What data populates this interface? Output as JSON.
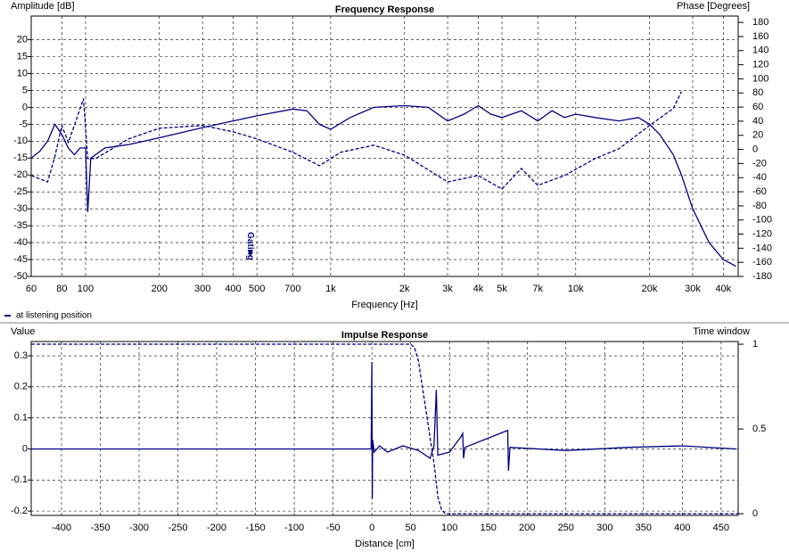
{
  "chart_data": [
    {
      "type": "line",
      "title": "Frequency Response",
      "ylabel": "Amplitude [dB]",
      "y2label": "Phase [Degrees]",
      "xlabel": "Frequency [Hz]",
      "xlog": true,
      "grid": true,
      "legend": "bottom-left",
      "xlim": [
        60,
        46000
      ],
      "ylim": [
        -50,
        27
      ],
      "y2lim": [
        -180,
        189
      ],
      "xticks": [
        60,
        80,
        100,
        200,
        300,
        400,
        500,
        700,
        {
          "value": 1000,
          "label": "1k"
        },
        {
          "value": 2000,
          "label": "2k"
        },
        {
          "value": 3000,
          "label": "3k"
        },
        {
          "value": 4000,
          "label": "4k"
        },
        {
          "value": 5000,
          "label": "5k"
        },
        {
          "value": 7000,
          "label": "7k"
        },
        {
          "value": 10000,
          "label": "10k"
        },
        {
          "value": 20000,
          "label": "20k"
        },
        {
          "value": 30000,
          "label": "30k"
        },
        {
          "value": 40000,
          "label": "40k"
        }
      ],
      "yticks": [
        20,
        15,
        10,
        5,
        0,
        -5,
        -10,
        -15,
        -20,
        -25,
        -30,
        -35,
        -40,
        -45,
        -50
      ],
      "y2ticks": [
        180,
        160,
        140,
        120,
        100,
        80,
        60,
        40,
        20,
        0,
        -20,
        -40,
        -60,
        -80,
        -100,
        -120,
        -140,
        -160,
        -180
      ],
      "annotations": [
        {
          "text": "Gating",
          "x": 470
        }
      ],
      "series": [
        {
          "name": "at listening position",
          "color": "#000080",
          "style": "solid",
          "x": [
            60,
            65,
            70,
            75,
            80,
            85,
            90,
            95,
            100,
            102,
            105,
            120,
            150,
            200,
            300,
            400,
            500,
            700,
            800,
            900,
            1000,
            1200,
            1500,
            2000,
            2500,
            3000,
            3500,
            4000,
            4500,
            5000,
            6000,
            7000,
            8000,
            9000,
            10000,
            12000,
            15000,
            18000,
            20000,
            22000,
            25000,
            27000,
            30000,
            35000,
            40000,
            45000
          ],
          "values": [
            -15,
            -13,
            -10,
            -5,
            -8,
            -12,
            -14,
            -12,
            -12,
            -31,
            -15,
            -12,
            -11,
            -9,
            -6,
            -4,
            -2.5,
            -0.5,
            -1,
            -5,
            -6.5,
            -3,
            0,
            0.5,
            0,
            -4,
            -2,
            0.5,
            -2,
            -3,
            -1,
            -4,
            -1,
            -3,
            -2,
            -3,
            -4,
            -3,
            -5,
            -8,
            -14,
            -20,
            -30,
            -40,
            -45,
            -47
          ]
        },
        {
          "color": "#000080",
          "style": "dashed",
          "axis": "y2",
          "x": [
            60,
            70,
            75,
            80,
            85,
            90,
            98,
            102,
            110,
            150,
            200,
            300,
            400,
            500,
            700,
            900,
            1100,
            1500,
            2000,
            3000,
            4000,
            5000,
            6000,
            7000,
            9000,
            12000,
            15000,
            20000,
            25000,
            27000
          ],
          "values": [
            -37,
            -46,
            -10,
            34,
            10,
            34,
            72,
            -13,
            -13,
            15,
            30,
            34,
            25,
            15,
            -4,
            -23,
            -4,
            6,
            -8,
            -46,
            -37,
            -56,
            -27,
            -51,
            -37,
            -13,
            1,
            34,
            58,
            82
          ]
        }
      ]
    },
    {
      "type": "line",
      "title": "Impulse Response",
      "ylabel": "Value",
      "y2label": "Time window",
      "xlabel": "Distance [cm]",
      "grid": true,
      "xlim": [
        -439,
        472
      ],
      "ylim": [
        -0.214,
        0.346
      ],
      "y2lim": [
        -0.01,
        1.016
      ],
      "xticks": [
        -400,
        -350,
        -300,
        -250,
        -200,
        -150,
        -100,
        -50,
        0,
        50,
        100,
        150,
        200,
        250,
        300,
        350,
        400,
        450
      ],
      "yticks": [
        0.3,
        0.2,
        0.1,
        0,
        -0.1,
        -0.2
      ],
      "y2ticks": [
        1,
        0.5,
        0
      ],
      "series": [
        {
          "color": "#000080",
          "style": "solid",
          "x": [
            -439,
            -1,
            0,
            0.5,
            1,
            3,
            10,
            20,
            40,
            60,
            75,
            80,
            83,
            85,
            100,
            115,
            117,
            118,
            120,
            175,
            176,
            178,
            250,
            330,
            400,
            470
          ],
          "values": [
            0,
            0,
            0.28,
            -0.16,
            0.03,
            -0.01,
            0.01,
            -0.01,
            0.01,
            -0.005,
            -0.03,
            0.01,
            0.19,
            -0.02,
            -0.01,
            0.04,
            0.05,
            -0.03,
            0.005,
            0.06,
            -0.07,
            0.005,
            -0.005,
            0.005,
            0.01,
            0
          ]
        },
        {
          "color": "#000080",
          "style": "dashed",
          "axis": "y2",
          "x": [
            -439,
            50,
            55,
            60,
            65,
            70,
            75,
            80,
            85,
            90,
            95,
            472
          ],
          "values": [
            1,
            1,
            0.98,
            0.9,
            0.75,
            0.6,
            0.45,
            0.3,
            0.1,
            0.02,
            0,
            0
          ]
        }
      ]
    }
  ]
}
